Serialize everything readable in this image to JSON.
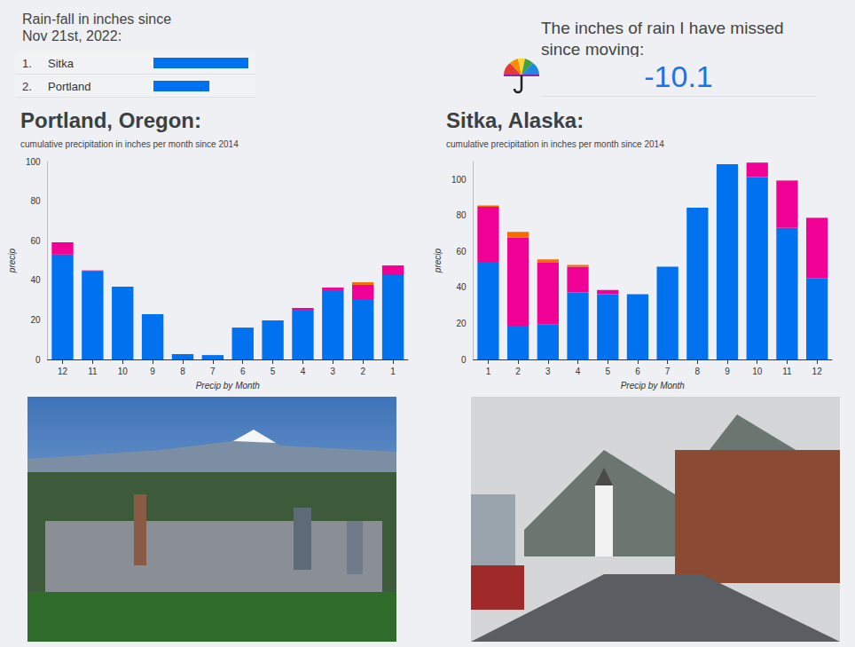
{
  "chart_data": [
    {
      "type": "bar",
      "orientation": "horizontal",
      "title": "Rain-fall in inches since Nov 21st, 2022:",
      "categories": [
        "Sitka",
        "Portland"
      ],
      "ranks": [
        "1.",
        "2."
      ],
      "values": [
        24.6,
        14.5
      ],
      "color": "#0072f0",
      "tick_labels": "y",
      "grid": false
    },
    {
      "type": "bar",
      "stacked": true,
      "title": "Portland, Oregon:",
      "subtitle": "cumulative precipitation in inches per month since 2014",
      "x_label": "Precip by Month",
      "y_label": "precip",
      "categories": [
        "12",
        "11",
        "10",
        "9",
        "8",
        "7",
        "6",
        "5",
        "4",
        "3",
        "2",
        "1"
      ],
      "series": [
        {
          "color": "#0072f0",
          "values": [
            53,
            44.5,
            36.8,
            22.9,
            2.7,
            2.2,
            16.1,
            19.7,
            24.7,
            35,
            30.5,
            42.6
          ]
        },
        {
          "color": "#f10096",
          "values": [
            6.2,
            0.5,
            0,
            0,
            0,
            0,
            0,
            0,
            1.3,
            1.3,
            7.2,
            4.9
          ]
        },
        {
          "color": "#f66d00",
          "values": [
            0,
            0,
            0,
            0,
            0,
            0,
            0,
            0,
            0,
            0,
            1.3,
            0
          ]
        }
      ],
      "ylim": [
        0,
        100
      ],
      "yticks": [
        0,
        20,
        40,
        60,
        80,
        100
      ],
      "grid": false
    },
    {
      "type": "bar",
      "stacked": true,
      "title": "Sitka, Alaska:",
      "subtitle": "cumulative precipitation in inches per month since 2014",
      "x_label": "Precip by Month",
      "y_label": "precip",
      "categories": [
        "1",
        "2",
        "3",
        "4",
        "5",
        "6",
        "7",
        "8",
        "9",
        "10",
        "11",
        "12"
      ],
      "series": [
        {
          "color": "#0072f0",
          "values": [
            54.3,
            18.8,
            19.3,
            37.2,
            36.3,
            36.3,
            51.6,
            84.3,
            108.5,
            101.3,
            73.1,
            45.3
          ]
        },
        {
          "color": "#f10096",
          "values": [
            30.5,
            48.9,
            34.5,
            14.4,
            2.3,
            0,
            0,
            0,
            0,
            8.1,
            26,
            33.2
          ]
        },
        {
          "color": "#f66d00",
          "values": [
            0.8,
            3.2,
            1.8,
            0.9,
            0,
            0,
            0,
            0,
            0,
            0,
            0.5,
            0.4
          ]
        }
      ],
      "ylim": [
        0,
        110
      ],
      "yticks": [
        0,
        20,
        40,
        60,
        80,
        100
      ],
      "grid": false
    }
  ],
  "kpi": {
    "title": "The inches of rain I have missed since moving:",
    "value": -10.1
  }
}
